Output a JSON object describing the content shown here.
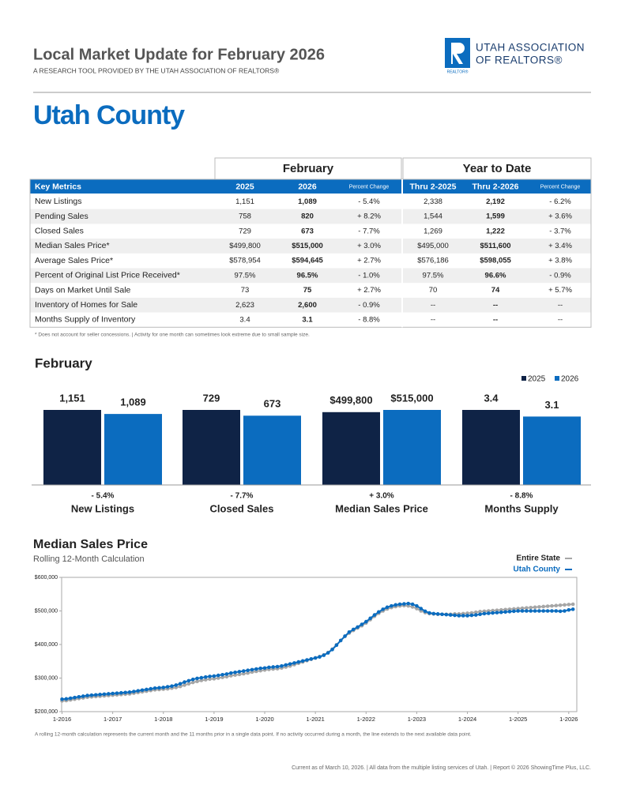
{
  "header": {
    "title": "Local Market Update for February 2026",
    "subtitle": "A RESEARCH TOOL PROVIDED BY THE UTAH ASSOCIATION OF REALTORS®",
    "logo_line1": "UTAH ASSOCIATION",
    "logo_line2": "OF REALTORS®",
    "logo_mark": "REALTOR®"
  },
  "area": "Utah County",
  "table": {
    "groups": [
      "February",
      "Year to Date"
    ],
    "columns": [
      "Key Metrics",
      "2025",
      "2026",
      "Percent Change",
      "Thru 2-2025",
      "Thru 2-2026",
      "Percent Change"
    ],
    "rows": [
      [
        "New Listings",
        "1,151",
        "1,089",
        "- 5.4%",
        "2,338",
        "2,192",
        "- 6.2%"
      ],
      [
        "Pending Sales",
        "758",
        "820",
        "+ 8.2%",
        "1,544",
        "1,599",
        "+ 3.6%"
      ],
      [
        "Closed Sales",
        "729",
        "673",
        "- 7.7%",
        "1,269",
        "1,222",
        "- 3.7%"
      ],
      [
        "Median Sales Price*",
        "$499,800",
        "$515,000",
        "+ 3.0%",
        "$495,000",
        "$511,600",
        "+ 3.4%"
      ],
      [
        "Average Sales Price*",
        "$578,954",
        "$594,645",
        "+ 2.7%",
        "$576,186",
        "$598,055",
        "+ 3.8%"
      ],
      [
        "Percent of Original List Price Received*",
        "97.5%",
        "96.5%",
        "- 1.0%",
        "97.5%",
        "96.6%",
        "- 0.9%"
      ],
      [
        "Days on Market Until Sale",
        "73",
        "75",
        "+ 2.7%",
        "70",
        "74",
        "+ 5.7%"
      ],
      [
        "Inventory of Homes for Sale",
        "2,623",
        "2,600",
        "- 0.9%",
        "--",
        "--",
        "--"
      ],
      [
        "Months Supply of Inventory",
        "3.4",
        "3.1",
        "- 8.8%",
        "--",
        "--",
        "--"
      ]
    ]
  },
  "footnote": "* Does not account for seller concessions.  |  Activity for one month can sometimes look extreme due to small sample size.",
  "chart_data": [
    {
      "type": "bar",
      "title": "February",
      "categories": [
        "New Listings",
        "Closed Sales",
        "Median Sales Price",
        "Months Supply"
      ],
      "change_labels": [
        "- 5.4%",
        "- 7.7%",
        "+ 3.0%",
        "- 8.8%"
      ],
      "legend": "top-right",
      "series": [
        {
          "name": "2025",
          "color": "#0f2346",
          "values": [
            1151,
            729,
            499800,
            3.4
          ],
          "value_labels": [
            "1,151",
            "729",
            "$499,800",
            "3.4"
          ]
        },
        {
          "name": "2026",
          "color": "#0b6cbf",
          "values": [
            1089,
            673,
            515000,
            3.1
          ],
          "value_labels": [
            "1,089",
            "673",
            "$515,000",
            "3.1"
          ]
        }
      ]
    },
    {
      "type": "line",
      "title": "Median Sales Price",
      "subtitle": "Rolling 12-Month Calculation",
      "note": "A rolling 12-month calculation represents the current month and the 11 months prior in a single data point. If no activity occurred during a month, the line extends to the next available data point.",
      "legend": "top-right",
      "grid": false,
      "ylim": [
        200000,
        600000
      ],
      "yticks": [
        {
          "value": 200000,
          "label": "$200,000"
        },
        {
          "value": 300000,
          "label": "$300,000"
        },
        {
          "value": 400000,
          "label": "$400,000"
        },
        {
          "value": 500000,
          "label": "$500,000"
        },
        {
          "value": 600000,
          "label": "$600,000"
        }
      ],
      "x": [
        "1-2016",
        null,
        null,
        null,
        null,
        null,
        null,
        null,
        null,
        null,
        null,
        null,
        "1-2017",
        null,
        null,
        null,
        null,
        null,
        null,
        null,
        null,
        null,
        null,
        null,
        "1-2018",
        null,
        null,
        null,
        null,
        null,
        null,
        null,
        null,
        null,
        null,
        null,
        "1-2019",
        null,
        null,
        null,
        null,
        null,
        null,
        null,
        null,
        null,
        null,
        null,
        "1-2020",
        null,
        null,
        null,
        null,
        null,
        null,
        null,
        null,
        null,
        null,
        null,
        "1-2021",
        null,
        null,
        null,
        null,
        null,
        null,
        null,
        null,
        null,
        null,
        null,
        "1-2022",
        null,
        null,
        null,
        null,
        null,
        null,
        null,
        null,
        null,
        null,
        null,
        "1-2023",
        null,
        null,
        null,
        null,
        null,
        null,
        null,
        null,
        null,
        null,
        null,
        "1-2024",
        null,
        null,
        null,
        null,
        null,
        null,
        null,
        null,
        null,
        null,
        null,
        "1-2025",
        null,
        null,
        null,
        null,
        null,
        null,
        null,
        null,
        null,
        null,
        null,
        "1-2026",
        null
      ],
      "series": [
        {
          "name": "Entire State",
          "color": "#a6a6a6",
          "values": [
            232000,
            233000,
            235000,
            237000,
            239000,
            241000,
            243000,
            244000,
            245000,
            246000,
            247000,
            248000,
            249000,
            250000,
            251000,
            252000,
            253000,
            255000,
            257000,
            259000,
            261000,
            263000,
            265000,
            266000,
            267000,
            268000,
            270000,
            272000,
            275000,
            279000,
            283000,
            287000,
            290000,
            293000,
            295000,
            297000,
            298000,
            300000,
            302000,
            304000,
            307000,
            309000,
            311000,
            313000,
            315000,
            318000,
            320000,
            322000,
            324000,
            326000,
            327000,
            328000,
            330000,
            333000,
            336000,
            340000,
            344000,
            348000,
            352000,
            356000,
            360000,
            364000,
            369000,
            376000,
            386000,
            399000,
            412000,
            424000,
            434000,
            442000,
            449000,
            456000,
            464000,
            474000,
            484000,
            493000,
            500000,
            506000,
            510000,
            513000,
            515000,
            516000,
            515000,
            512000,
            507000,
            500000,
            495000,
            492000,
            491000,
            490000,
            490000,
            490000,
            490000,
            491000,
            491000,
            492000,
            493000,
            494000,
            496000,
            498000,
            499000,
            500000,
            501000,
            502000,
            503000,
            504000,
            505000,
            506000,
            507000,
            508000,
            509000,
            510000,
            511000,
            512000,
            513000,
            514000,
            515000,
            516000,
            517000,
            518000,
            519000,
            520000
          ]
        },
        {
          "name": "Utah County",
          "color": "#0b6cbf",
          "values": [
            237000,
            238000,
            240000,
            242000,
            244000,
            246000,
            248000,
            249000,
            250000,
            251000,
            252000,
            253000,
            254000,
            255000,
            256000,
            257000,
            258000,
            260000,
            262000,
            264000,
            266000,
            268000,
            270000,
            271000,
            272000,
            274000,
            276000,
            279000,
            283000,
            288000,
            292000,
            296000,
            299000,
            301000,
            303000,
            305000,
            306000,
            308000,
            310000,
            312000,
            315000,
            317000,
            319000,
            321000,
            323000,
            325000,
            327000,
            329000,
            330000,
            332000,
            333000,
            334000,
            336000,
            339000,
            342000,
            345000,
            348000,
            351000,
            354000,
            357000,
            360000,
            363000,
            368000,
            375000,
            385000,
            398000,
            412000,
            425000,
            437000,
            445000,
            452000,
            460000,
            468000,
            478000,
            488000,
            497000,
            505000,
            511000,
            515000,
            518000,
            520000,
            521000,
            522000,
            520000,
            515000,
            507000,
            499000,
            494000,
            492000,
            491000,
            490000,
            489000,
            488000,
            487000,
            486000,
            486000,
            486000,
            487000,
            488000,
            490000,
            492000,
            493000,
            494000,
            495000,
            496000,
            497000,
            498000,
            499000,
            500000,
            500000,
            500000,
            500000,
            500000,
            500000,
            500000,
            500000,
            500000,
            500000,
            499000,
            500000,
            503000,
            505000
          ]
        }
      ]
    }
  ],
  "footer": "Current as of March 10, 2026.  |  All data from the multiple listing services of Utah. | Report © 2026 ShowingTime Plus, LLC."
}
